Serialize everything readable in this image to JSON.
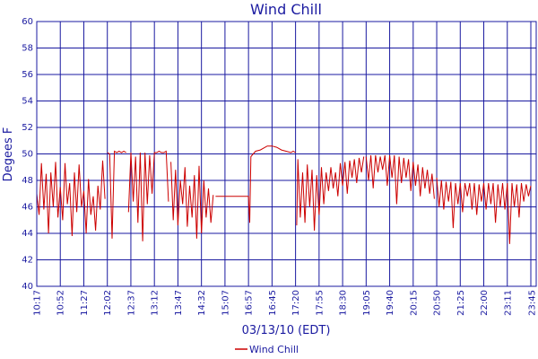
{
  "chart_data": {
    "type": "line",
    "title": "Wind Chill",
    "xlabel": "03/13/10 (EDT)",
    "ylabel": "Degees F",
    "ylim": [
      40,
      60
    ],
    "yticks": [
      "40",
      "42",
      "44",
      "46",
      "48",
      "50",
      "52",
      "54",
      "56",
      "58",
      "60"
    ],
    "xticks": [
      "10:17",
      "10:52",
      "11:27",
      "12:02",
      "12:37",
      "13:12",
      "13:47",
      "14:32",
      "15:07",
      "16:57",
      "16:45",
      "17:20",
      "17:55",
      "18:30",
      "19:05",
      "19:40",
      "20:15",
      "20:50",
      "21:25",
      "22:00",
      "23:11",
      "23:45"
    ],
    "grid": true,
    "legend": "bottom-center",
    "colors": {
      "series": "#cc0000",
      "grid": "#1a1aa0",
      "text": "#1a1aa0"
    },
    "series": [
      {
        "name": "Wind Chill",
        "segments": [
          {
            "comment_free": true,
            "x": [
              0.0,
              0.1,
              0.2,
              0.3,
              0.4,
              0.5,
              0.6,
              0.7,
              0.8,
              0.9,
              1.0,
              1.1,
              1.2,
              1.3,
              1.4,
              1.5,
              1.6,
              1.7,
              1.8,
              1.9,
              2.0,
              2.1,
              2.2,
              2.3,
              2.4,
              2.5,
              2.6,
              2.7,
              2.8,
              2.9
            ],
            "y": [
              47.0,
              45.4,
              49.3,
              45.8,
              48.5,
              44.0,
              48.6,
              46.0,
              49.4,
              45.2,
              47.5,
              45.0,
              49.3,
              46.2,
              47.8,
              43.8,
              48.6,
              45.6,
              49.2,
              46.0,
              47.2,
              44.0,
              48.1,
              45.4,
              46.8,
              44.2,
              47.6,
              45.8,
              49.5,
              46.6
            ]
          },
          {
            "x": [
              3.0,
              3.1,
              3.2,
              3.3,
              3.4,
              3.5,
              3.6,
              3.7,
              3.8
            ],
            "y": [
              50.1,
              50.0,
              43.6,
              50.2,
              50.1,
              50.2,
              50.1,
              50.2,
              50.1
            ]
          },
          {
            "x": [
              3.9,
              4.0,
              4.1,
              4.2,
              4.3,
              4.4,
              4.5,
              4.6,
              4.7,
              4.8,
              4.9,
              5.0,
              5.1,
              5.2,
              5.3,
              5.4,
              5.5,
              5.6
            ],
            "y": [
              45.6,
              50.1,
              46.4,
              49.8,
              44.8,
              50.1,
              43.4,
              50.1,
              46.2,
              49.9,
              47.0,
              50.1,
              50.1,
              50.2,
              50.1,
              50.1,
              50.2,
              46.4
            ]
          },
          {
            "x": [
              5.7,
              5.8,
              5.9,
              6.0,
              6.1,
              6.2,
              6.3,
              6.4,
              6.5,
              6.6,
              6.7,
              6.8,
              6.9,
              7.0,
              7.1,
              7.2,
              7.3,
              7.4,
              7.5
            ],
            "y": [
              49.4,
              45.0,
              48.8,
              44.6,
              48.0,
              46.2,
              49.0,
              44.5,
              47.6,
              45.2,
              48.4,
              43.6,
              49.1,
              44.0,
              48.0,
              45.2,
              47.4,
              44.8,
              46.9
            ]
          },
          {
            "x": [
              7.6,
              8.0,
              8.5,
              9.0,
              9.05,
              9.1,
              9.2,
              9.3,
              9.5,
              9.8,
              10.0,
              10.2,
              10.4,
              10.6,
              10.8,
              10.9,
              11.0
            ],
            "y": [
              46.8,
              46.8,
              46.8,
              46.8,
              44.8,
              49.8,
              50.0,
              50.2,
              50.3,
              50.6,
              50.6,
              50.5,
              50.3,
              50.2,
              50.1,
              50.2,
              50.1
            ]
          },
          {
            "x": [
              11.05,
              11.1,
              11.2,
              11.3,
              11.4,
              11.5,
              11.6,
              11.7,
              11.8,
              11.9,
              12.0,
              12.1,
              12.2,
              12.3,
              12.4,
              12.5,
              12.6,
              12.7,
              12.8,
              12.9,
              13.0,
              13.1,
              13.2,
              13.3,
              13.4,
              13.5,
              13.6,
              13.7,
              13.8,
              13.9
            ],
            "y": [
              44.6,
              49.6,
              45.2,
              48.6,
              44.8,
              49.2,
              46.0,
              48.8,
              44.2,
              48.4,
              45.4,
              49.0,
              46.2,
              48.6,
              47.2,
              49.0,
              47.4,
              48.6,
              46.8,
              49.3,
              47.6,
              49.4,
              47.0,
              49.5,
              48.2,
              49.6,
              47.8,
              49.7,
              48.6,
              49.8
            ]
          },
          {
            "x": [
              14.0,
              14.1,
              14.2,
              14.3,
              14.4,
              14.5,
              14.6,
              14.7,
              14.8,
              14.9,
              15.0,
              15.1,
              15.2,
              15.3,
              15.4,
              15.5,
              15.6,
              15.7,
              15.8,
              15.9,
              16.0,
              16.1,
              16.2,
              16.3,
              16.4,
              16.5,
              16.6,
              16.7,
              16.8,
              16.9
            ],
            "y": [
              49.8,
              48.0,
              49.9,
              47.4,
              49.9,
              48.6,
              49.8,
              48.8,
              49.9,
              47.6,
              49.9,
              48.2,
              49.9,
              46.2,
              49.8,
              47.8,
              49.7,
              48.2,
              49.6,
              47.2,
              49.4,
              47.6,
              49.2,
              46.8,
              49.0,
              47.4,
              48.8,
              47.0,
              48.5,
              46.6
            ]
          },
          {
            "x": [
              17.0,
              17.1,
              17.2,
              17.3,
              17.4,
              17.5,
              17.6,
              17.7,
              17.8,
              17.9,
              18.0,
              18.1,
              18.2,
              18.3,
              18.4,
              18.5,
              18.6,
              18.7,
              18.8,
              18.9,
              19.0,
              19.1,
              19.2,
              19.3,
              19.4,
              19.5,
              19.6,
              19.7,
              19.8,
              19.9,
              20.0,
              20.1,
              20.2,
              20.3,
              20.4,
              20.5,
              20.6,
              20.7,
              20.8,
              20.9,
              21.0
            ],
            "y": [
              48.2,
              46.0,
              48.0,
              45.8,
              47.9,
              46.4,
              47.9,
              44.4,
              47.8,
              46.2,
              47.8,
              45.6,
              47.8,
              46.8,
              47.8,
              45.8,
              47.8,
              45.4,
              47.7,
              46.4,
              47.8,
              45.8,
              47.8,
              46.2,
              47.8,
              44.8,
              47.7,
              46.0,
              47.8,
              45.8,
              47.8,
              43.2,
              47.8,
              46.0,
              47.7,
              45.2,
              47.8,
              46.4,
              47.7,
              46.8,
              47.6
            ]
          }
        ]
      }
    ]
  }
}
